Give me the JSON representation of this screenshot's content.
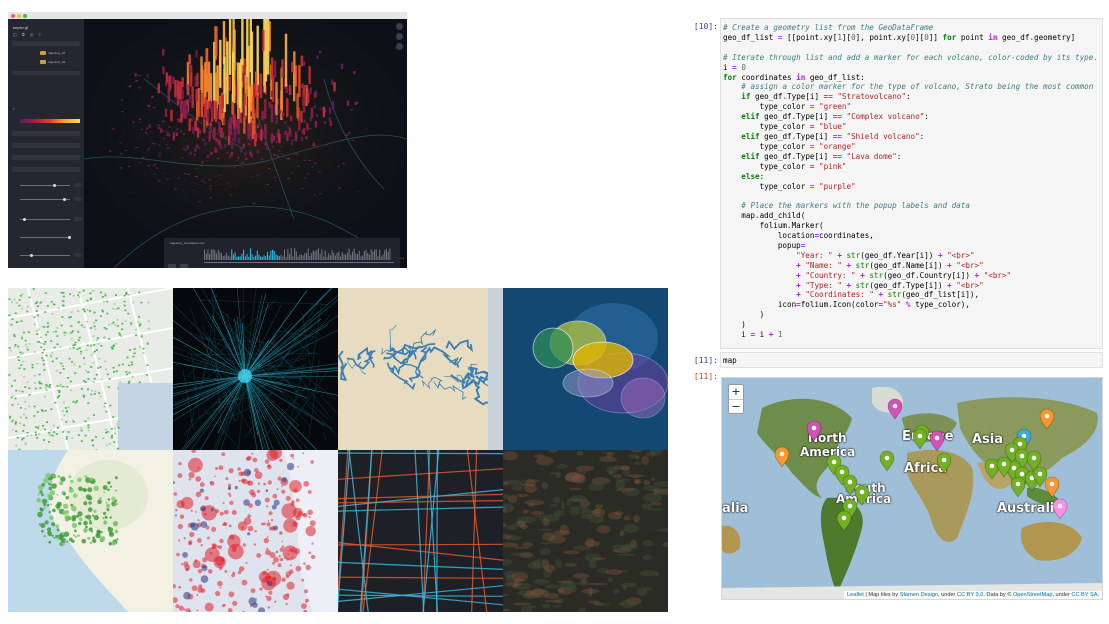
{
  "kepler": {
    "brand": "kepler.gl",
    "tabs": "◫  ⧉  ◎  ≡",
    "layers": [
      "trajectory_01",
      "trajectory_02"
    ],
    "timeline_label": "trajectory_timestamps.csv"
  },
  "tiles": [
    "mosaic-map-1",
    "mosaic-map-2",
    "mosaic-map-3",
    "mosaic-map-4",
    "mosaic-map-5",
    "mosaic-map-6",
    "mosaic-map-7",
    "mosaic-map-8"
  ],
  "notebook": {
    "cell10_prompt": "[10]:",
    "cell11_in_prompt": "[11]:",
    "cell11_out_prompt": "[11]:",
    "cell11_code": "map",
    "cell10_lines": [
      [
        [
          "c",
          "# Create a geometry list from the GeoDataFrame"
        ]
      ],
      [
        [
          "",
          "geo_df_list "
        ],
        [
          "o",
          "="
        ],
        [
          "",
          " [[point"
        ],
        [
          "o",
          "."
        ],
        [
          "",
          "xy["
        ],
        [
          "m",
          "1"
        ],
        [
          "",
          "]["
        ],
        [
          "m",
          "0"
        ],
        [
          "",
          "], point"
        ],
        [
          "o",
          "."
        ],
        [
          "",
          "xy["
        ],
        [
          "m",
          "0"
        ],
        [
          "",
          "]["
        ],
        [
          "m",
          "0"
        ],
        [
          "",
          "]] "
        ],
        [
          "k",
          "for"
        ],
        [
          "",
          " point "
        ],
        [
          "o",
          "in"
        ],
        [
          "",
          " geo_df"
        ],
        [
          "o",
          "."
        ],
        [
          "",
          "geometry]"
        ]
      ],
      [
        [
          "",
          ""
        ]
      ],
      [
        [
          "c",
          "# Iterate through list and add a marker for each volcano, color-coded by its type."
        ]
      ],
      [
        [
          "",
          "i "
        ],
        [
          "o",
          "="
        ],
        [
          "",
          " "
        ],
        [
          "m",
          "0"
        ]
      ],
      [
        [
          "k",
          "for"
        ],
        [
          "",
          " coordinates "
        ],
        [
          "o",
          "in"
        ],
        [
          "",
          " geo_df_list:"
        ]
      ],
      [
        [
          "",
          "    "
        ],
        [
          "c",
          "# assign a color marker for the type of volcano, Strato being the most common"
        ]
      ],
      [
        [
          "",
          "    "
        ],
        [
          "k",
          "if"
        ],
        [
          "",
          " geo_df"
        ],
        [
          "o",
          "."
        ],
        [
          "",
          "Type[i] "
        ],
        [
          "o",
          "=="
        ],
        [
          "",
          " "
        ],
        [
          "s",
          "\"Stratovolcano\""
        ],
        [
          "",
          ":"
        ]
      ],
      [
        [
          "",
          "        type_color "
        ],
        [
          "o",
          "="
        ],
        [
          "",
          " "
        ],
        [
          "s",
          "\"green\""
        ]
      ],
      [
        [
          "",
          "    "
        ],
        [
          "k",
          "elif"
        ],
        [
          "",
          " geo_df"
        ],
        [
          "o",
          "."
        ],
        [
          "",
          "Type[i] "
        ],
        [
          "o",
          "=="
        ],
        [
          "",
          " "
        ],
        [
          "s",
          "\"Complex volcano\""
        ],
        [
          "",
          ":"
        ]
      ],
      [
        [
          "",
          "        type_color "
        ],
        [
          "o",
          "="
        ],
        [
          "",
          " "
        ],
        [
          "s",
          "\"blue\""
        ]
      ],
      [
        [
          "",
          "    "
        ],
        [
          "k",
          "elif"
        ],
        [
          "",
          " geo_df"
        ],
        [
          "o",
          "."
        ],
        [
          "",
          "Type[i] "
        ],
        [
          "o",
          "=="
        ],
        [
          "",
          " "
        ],
        [
          "s",
          "\"Shield volcano\""
        ],
        [
          "",
          ":"
        ]
      ],
      [
        [
          "",
          "        type_color "
        ],
        [
          "o",
          "="
        ],
        [
          "",
          " "
        ],
        [
          "s",
          "\"orange\""
        ]
      ],
      [
        [
          "",
          "    "
        ],
        [
          "k",
          "elif"
        ],
        [
          "",
          " geo_df"
        ],
        [
          "o",
          "."
        ],
        [
          "",
          "Type[i] "
        ],
        [
          "o",
          "=="
        ],
        [
          "",
          " "
        ],
        [
          "s",
          "\"Lava dome\""
        ],
        [
          "",
          ":"
        ]
      ],
      [
        [
          "",
          "        type_color "
        ],
        [
          "o",
          "="
        ],
        [
          "",
          " "
        ],
        [
          "s",
          "\"pink\""
        ]
      ],
      [
        [
          "",
          "    "
        ],
        [
          "k",
          "else"
        ],
        [
          "",
          ":"
        ]
      ],
      [
        [
          "",
          "        type_color "
        ],
        [
          "o",
          "="
        ],
        [
          "",
          " "
        ],
        [
          "s",
          "\"purple\""
        ]
      ],
      [
        [
          "",
          ""
        ]
      ],
      [
        [
          "",
          "    "
        ],
        [
          "c",
          "# Place the markers with the popup labels and data"
        ]
      ],
      [
        [
          "",
          "    map"
        ],
        [
          "o",
          "."
        ],
        [
          "",
          "add_child("
        ]
      ],
      [
        [
          "",
          "        folium"
        ],
        [
          "o",
          "."
        ],
        [
          "",
          "Marker("
        ]
      ],
      [
        [
          "",
          "            location"
        ],
        [
          "o",
          "="
        ],
        [
          "",
          "coordinates,"
        ]
      ],
      [
        [
          "",
          "            popup"
        ],
        [
          "o",
          "="
        ]
      ],
      [
        [
          "",
          "                "
        ],
        [
          "s",
          "\"Year: \""
        ],
        [
          "",
          " "
        ],
        [
          "o",
          "+"
        ],
        [
          "",
          " "
        ],
        [
          "n",
          "str"
        ],
        [
          "",
          "(geo_df"
        ],
        [
          "o",
          "."
        ],
        [
          "",
          "Year[i]) "
        ],
        [
          "o",
          "+"
        ],
        [
          "",
          " "
        ],
        [
          "s",
          "\"<br>\""
        ]
      ],
      [
        [
          "",
          "                "
        ],
        [
          "o",
          "+"
        ],
        [
          "",
          " "
        ],
        [
          "s",
          "\"Name: \""
        ],
        [
          "",
          " "
        ],
        [
          "o",
          "+"
        ],
        [
          "",
          " "
        ],
        [
          "n",
          "str"
        ],
        [
          "",
          "(geo_df"
        ],
        [
          "o",
          "."
        ],
        [
          "",
          "Name[i]) "
        ],
        [
          "o",
          "+"
        ],
        [
          "",
          " "
        ],
        [
          "s",
          "\"<br>\""
        ]
      ],
      [
        [
          "",
          "                "
        ],
        [
          "o",
          "+"
        ],
        [
          "",
          " "
        ],
        [
          "s",
          "\"Country: \""
        ],
        [
          "",
          " "
        ],
        [
          "o",
          "+"
        ],
        [
          "",
          " "
        ],
        [
          "n",
          "str"
        ],
        [
          "",
          "(geo_df"
        ],
        [
          "o",
          "."
        ],
        [
          "",
          "Country[i]) "
        ],
        [
          "o",
          "+"
        ],
        [
          "",
          " "
        ],
        [
          "s",
          "\"<br>\""
        ]
      ],
      [
        [
          "",
          "                "
        ],
        [
          "o",
          "+"
        ],
        [
          "",
          " "
        ],
        [
          "s",
          "\"Type: \""
        ],
        [
          "",
          " "
        ],
        [
          "o",
          "+"
        ],
        [
          "",
          " "
        ],
        [
          "n",
          "str"
        ],
        [
          "",
          "(geo_df"
        ],
        [
          "o",
          "."
        ],
        [
          "",
          "Type[i]) "
        ],
        [
          "o",
          "+"
        ],
        [
          "",
          " "
        ],
        [
          "s",
          "\"<br>\""
        ]
      ],
      [
        [
          "",
          "                "
        ],
        [
          "o",
          "+"
        ],
        [
          "",
          " "
        ],
        [
          "s",
          "\"Coordinates: \""
        ],
        [
          "",
          " "
        ],
        [
          "o",
          "+"
        ],
        [
          "",
          " "
        ],
        [
          "n",
          "str"
        ],
        [
          "",
          "(geo_df_list[i]),"
        ]
      ],
      [
        [
          "",
          "            icon"
        ],
        [
          "o",
          "="
        ],
        [
          "",
          "folium"
        ],
        [
          "o",
          "."
        ],
        [
          "",
          "Icon(color"
        ],
        [
          "o",
          "="
        ],
        [
          "s",
          "\"%s\""
        ],
        [
          "",
          " "
        ],
        [
          "o",
          "%"
        ],
        [
          "",
          " type_color),"
        ]
      ],
      [
        [
          "",
          "        )"
        ]
      ],
      [
        [
          "",
          "    )"
        ]
      ],
      [
        [
          "",
          "    i "
        ],
        [
          "o",
          "="
        ],
        [
          "",
          " i "
        ],
        [
          "o",
          "+"
        ],
        [
          "",
          " "
        ],
        [
          "m",
          "1"
        ]
      ]
    ]
  },
  "leaflet_map": {
    "zoom_in": "+",
    "zoom_out": "−",
    "labels": [
      "North",
      "America",
      "Europe",
      "Asia",
      "Africa",
      "South",
      "America",
      "Australia",
      "alia"
    ],
    "attribution": {
      "leaflet": "Leaflet",
      "text1": " | Map tiles by ",
      "stamen": "Stamen Design",
      "text2": ", under ",
      "ccby": "CC BY 3.0",
      "text3": ". Data by © ",
      "osm": "OpenStreetMap",
      "text4": ", under ",
      "ccbysa": "CC BY SA",
      "text5": "."
    },
    "marker_colors": {
      "green": "#72b026",
      "blue": "#38aadd",
      "orange": "#f69730",
      "pink": "#ff8ee9",
      "purple": "#d252b9"
    }
  }
}
